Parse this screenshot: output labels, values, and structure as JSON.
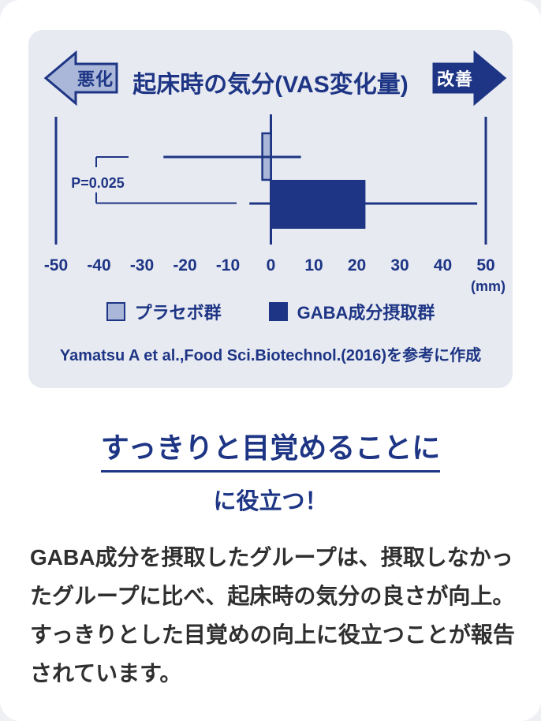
{
  "colors": {
    "accent": "#1d3584",
    "light": "#aab7d8",
    "panel": "#e8eaf2",
    "textDark": "#2f2f2f"
  },
  "chart_data": {
    "type": "bar",
    "orientation": "horizontal",
    "title": "起床時の気分(VAS変化量)",
    "direction_labels": {
      "left": "悪化",
      "right": "改善"
    },
    "xlim": [
      -50,
      50
    ],
    "xticks": [
      -50,
      -40,
      -30,
      -20,
      -10,
      0,
      10,
      20,
      30,
      40,
      50
    ],
    "unit": "(mm)",
    "grid": false,
    "significance": "P=0.025",
    "series": [
      {
        "name": "プラセボ群",
        "value": -2,
        "error_range": [
          -25,
          7
        ],
        "color": "#aab7d8",
        "bordered": true
      },
      {
        "name": "GABA成分摂取群",
        "value": 22,
        "error_range": [
          -5,
          48
        ],
        "color": "#1d3584",
        "bordered": false
      }
    ],
    "source": "Yamatsu A et al.,Food Sci.Biotechnol.(2016)を参考に作成"
  },
  "headline": {
    "line1": "すっきりと目覚めることに",
    "line2": "に役立つ！"
  },
  "body_text": "GABA成分を摂取したグループは、摂取しなかったグループに比べ、起床時の気分の良さが向上。すっきりとした目覚めの向上に役立つことが報告されています。"
}
